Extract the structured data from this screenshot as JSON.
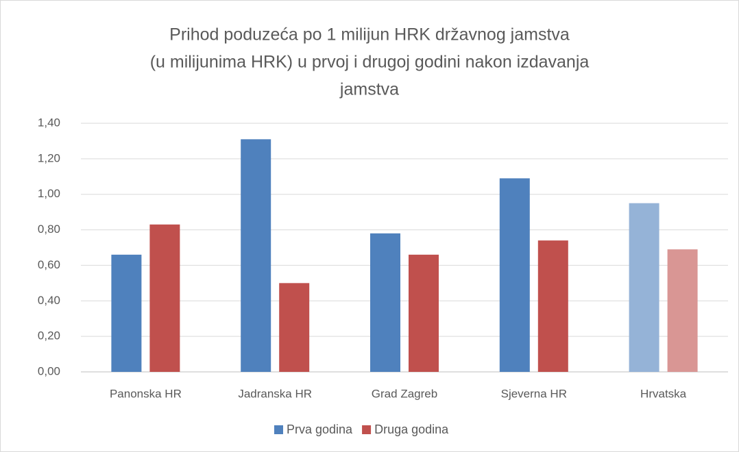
{
  "chart_data": {
    "type": "bar",
    "title": [
      "Prihod poduzeća po 1 milijun HRK državnog jamstva",
      "(u milijunima HRK) u prvoj i drugoj godini nakon izdavanja",
      "jamstva"
    ],
    "categories": [
      "Panonska HR",
      "Jadranska HR",
      "Grad Zagreb",
      "Sjeverna HR",
      "Hrvatska"
    ],
    "series": [
      {
        "name": "Prva godina",
        "color": "#4f81bd",
        "colors": [
          "#4f81bd",
          "#4f81bd",
          "#4f81bd",
          "#4f81bd",
          "#95b3d7"
        ],
        "values": [
          0.66,
          1.31,
          0.78,
          1.09,
          0.95
        ]
      },
      {
        "name": "Druga godina",
        "color": "#c0504d",
        "colors": [
          "#c0504d",
          "#c0504d",
          "#c0504d",
          "#c0504d",
          "#d99694"
        ],
        "values": [
          0.83,
          0.5,
          0.66,
          0.74,
          0.69
        ]
      }
    ],
    "ylim": [
      0,
      1.4
    ],
    "yticks": [
      {
        "value": 0,
        "label": "0,00"
      },
      {
        "value": 0.2,
        "label": "0,20"
      },
      {
        "value": 0.4,
        "label": "0,40"
      },
      {
        "value": 0.6,
        "label": "0,60"
      },
      {
        "value": 0.8,
        "label": "0,80"
      },
      {
        "value": 1.0,
        "label": "1,00"
      },
      {
        "value": 1.2,
        "label": "1,20"
      },
      {
        "value": 1.4,
        "label": "1,40"
      }
    ],
    "grid": true,
    "legend": "bottom"
  }
}
